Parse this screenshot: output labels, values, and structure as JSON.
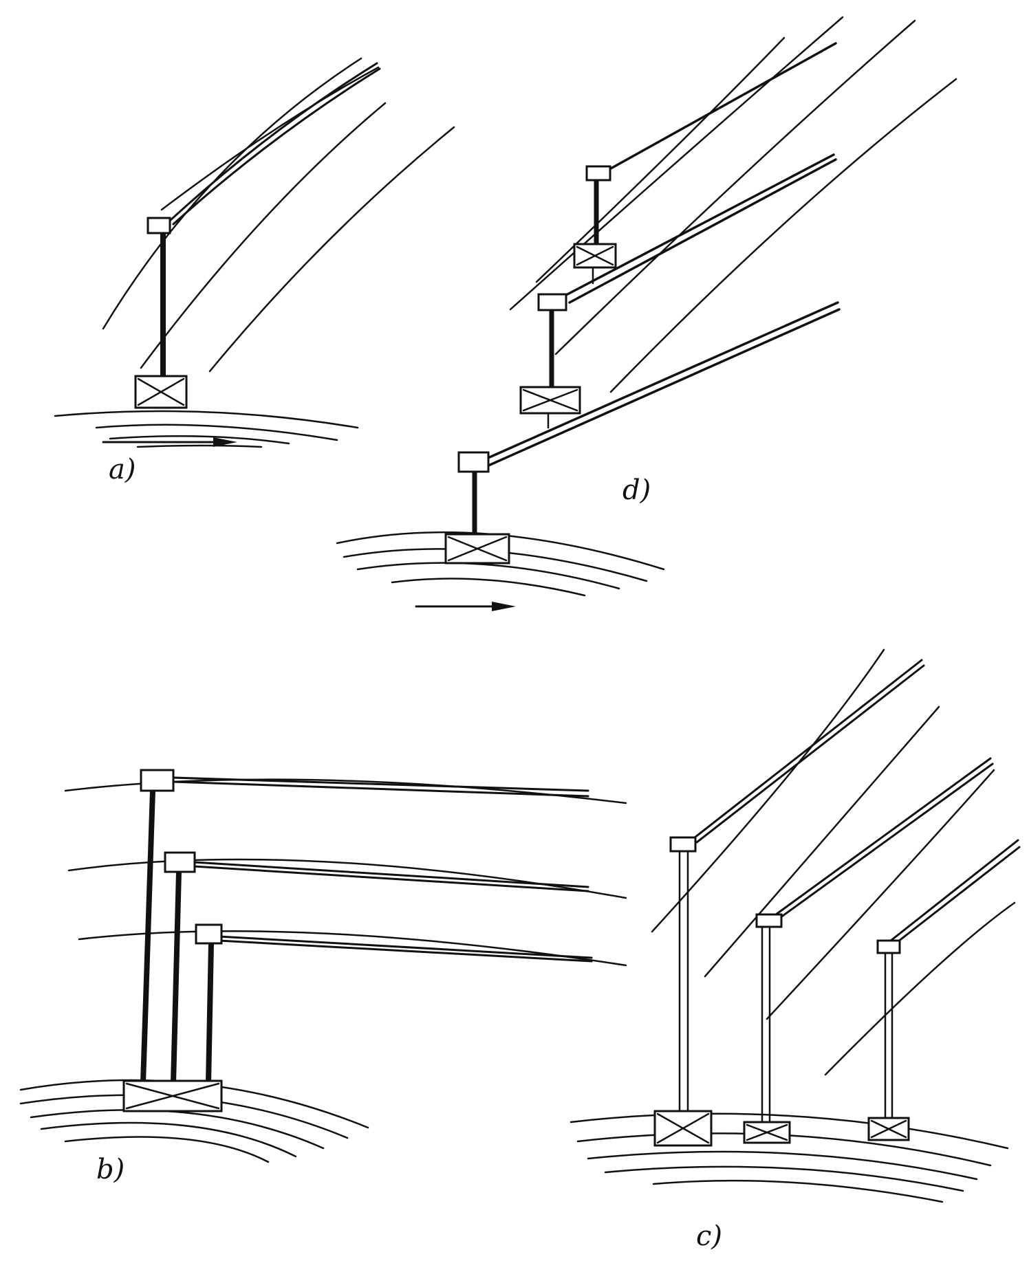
{
  "labels": {
    "a": "a)",
    "b": "b)",
    "c": "c)",
    "d": "d)"
  },
  "colors": {
    "ink": "#111111",
    "paper": "#ffffff"
  }
}
